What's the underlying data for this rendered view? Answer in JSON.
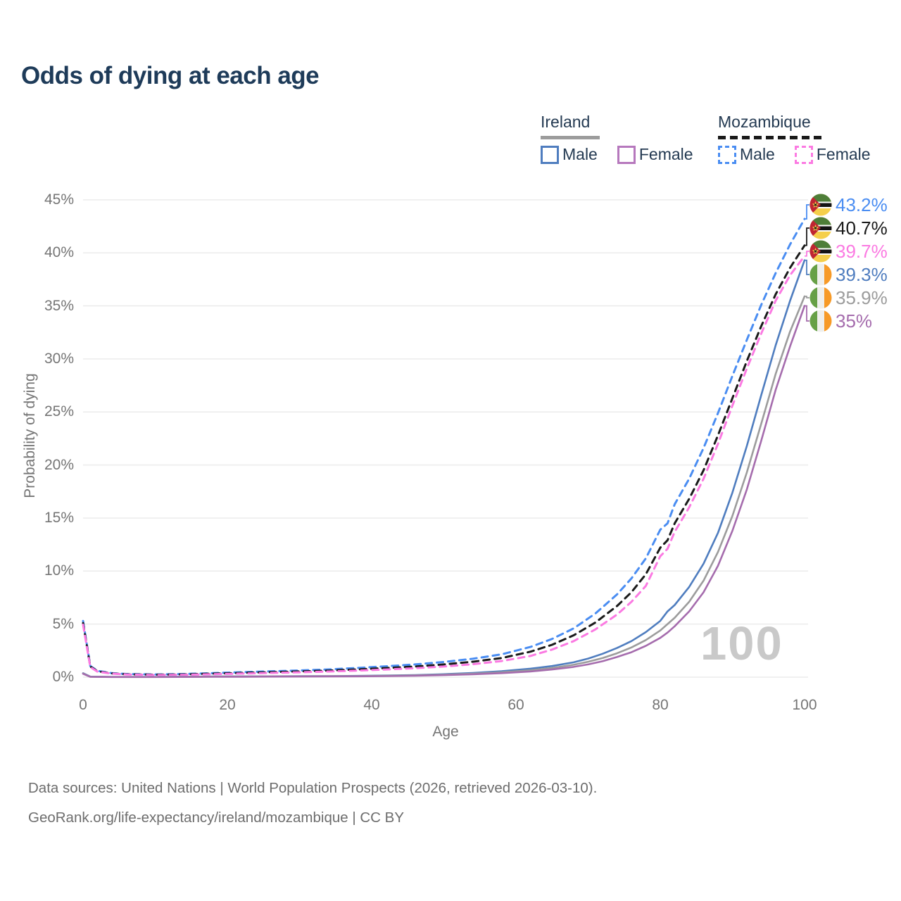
{
  "title": {
    "text": "Odds of dying at each age",
    "color": "#1e3b59"
  },
  "legend": {
    "groups": [
      {
        "name": "Ireland",
        "underline": {
          "style": "solid",
          "color": "#9c9c9c"
        },
        "items": [
          {
            "label": "Male",
            "color": "#4f7dbf",
            "dash": "solid"
          },
          {
            "label": "Female",
            "color": "#b678bd",
            "dash": "solid"
          }
        ]
      },
      {
        "name": "Mozambique",
        "underline": {
          "style": "dashed",
          "color": "#1a1a1a"
        },
        "items": [
          {
            "label": "Male",
            "color": "#4a8df2",
            "dash": "dashed"
          },
          {
            "label": "Female",
            "color": "#fb7ae2",
            "dash": "dashed"
          }
        ]
      }
    ]
  },
  "axes": {
    "x": {
      "label": "Age",
      "ticks": [
        0,
        20,
        40,
        60,
        80,
        100
      ],
      "color": "#757575"
    },
    "y": {
      "label": "Probability of dying",
      "ticks": [
        "0%",
        "5%",
        "10%",
        "15%",
        "20%",
        "25%",
        "30%",
        "35%",
        "40%",
        "45%"
      ],
      "color": "#757575"
    }
  },
  "watermark": {
    "text": "100",
    "color": "#c9c9c9"
  },
  "footer": {
    "line1": "Data sources: United Nations | World Population Prospects (2026, retrieved 2026-03-10).",
    "line2": "GeoRank.org/life-expectancy/ireland/mozambique | CC BY"
  },
  "chart_data": {
    "type": "line",
    "title": "Odds of dying at each age",
    "xlabel": "Age",
    "ylabel": "Probability of dying",
    "xlim": [
      0,
      100
    ],
    "ylim": [
      0,
      45
    ],
    "y_unit": "%",
    "grid": "horizontal, every 5%",
    "legend_position": "top-right",
    "series": [
      {
        "name": "Mozambique Male",
        "country": "Mozambique",
        "flag": "mozambique",
        "style": "dashed",
        "color": "#4a8df2",
        "end_label": "43.2%",
        "end_value": 43.2,
        "points": [
          [
            0,
            5.3
          ],
          [
            1,
            1.05
          ],
          [
            2,
            0.6
          ],
          [
            4,
            0.38
          ],
          [
            6,
            0.3
          ],
          [
            10,
            0.26
          ],
          [
            14,
            0.3
          ],
          [
            18,
            0.38
          ],
          [
            22,
            0.47
          ],
          [
            26,
            0.55
          ],
          [
            30,
            0.63
          ],
          [
            34,
            0.73
          ],
          [
            38,
            0.87
          ],
          [
            42,
            1.02
          ],
          [
            46,
            1.2
          ],
          [
            50,
            1.43
          ],
          [
            54,
            1.73
          ],
          [
            58,
            2.15
          ],
          [
            62,
            2.85
          ],
          [
            65,
            3.6
          ],
          [
            68,
            4.6
          ],
          [
            71,
            6.0
          ],
          [
            74,
            7.8
          ],
          [
            76,
            9.3
          ],
          [
            78,
            11.2
          ],
          [
            80,
            13.9
          ],
          [
            81,
            14.5
          ],
          [
            82,
            16.3
          ],
          [
            84,
            18.7
          ],
          [
            86,
            21.6
          ],
          [
            88,
            24.9
          ],
          [
            90,
            28.4
          ],
          [
            92,
            31.8
          ],
          [
            94,
            35.1
          ],
          [
            96,
            38.1
          ],
          [
            98,
            40.8
          ],
          [
            100,
            43.2
          ]
        ]
      },
      {
        "name": "Mozambique Both sexes",
        "country": "Mozambique",
        "flag": "mozambique",
        "style": "dashed",
        "color": "#1a1a1a",
        "end_label": "40.7%",
        "end_value": 40.7,
        "points": [
          [
            0,
            5.1
          ],
          [
            1,
            1.0
          ],
          [
            2,
            0.55
          ],
          [
            4,
            0.35
          ],
          [
            6,
            0.27
          ],
          [
            10,
            0.23
          ],
          [
            14,
            0.26
          ],
          [
            18,
            0.33
          ],
          [
            22,
            0.4
          ],
          [
            26,
            0.47
          ],
          [
            30,
            0.54
          ],
          [
            34,
            0.62
          ],
          [
            38,
            0.73
          ],
          [
            42,
            0.86
          ],
          [
            46,
            1.0
          ],
          [
            50,
            1.2
          ],
          [
            54,
            1.45
          ],
          [
            58,
            1.8
          ],
          [
            62,
            2.4
          ],
          [
            65,
            3.05
          ],
          [
            68,
            3.95
          ],
          [
            71,
            5.15
          ],
          [
            74,
            6.7
          ],
          [
            76,
            8.0
          ],
          [
            78,
            9.7
          ],
          [
            80,
            12.2
          ],
          [
            81,
            12.9
          ],
          [
            82,
            14.5
          ],
          [
            84,
            16.8
          ],
          [
            86,
            19.5
          ],
          [
            88,
            22.8
          ],
          [
            90,
            26.3
          ],
          [
            92,
            29.8
          ],
          [
            94,
            33.1
          ],
          [
            96,
            36.1
          ],
          [
            98,
            38.6
          ],
          [
            100,
            40.7
          ]
        ]
      },
      {
        "name": "Mozambique Female",
        "country": "Mozambique",
        "flag": "mozambique",
        "style": "dashed",
        "color": "#fb7ae2",
        "end_label": "39.7%",
        "end_value": 39.7,
        "points": [
          [
            0,
            4.95
          ],
          [
            1,
            0.95
          ],
          [
            2,
            0.52
          ],
          [
            4,
            0.33
          ],
          [
            6,
            0.25
          ],
          [
            10,
            0.2
          ],
          [
            14,
            0.22
          ],
          [
            18,
            0.28
          ],
          [
            22,
            0.34
          ],
          [
            26,
            0.4
          ],
          [
            30,
            0.46
          ],
          [
            34,
            0.53
          ],
          [
            38,
            0.62
          ],
          [
            42,
            0.72
          ],
          [
            46,
            0.84
          ],
          [
            50,
            1.0
          ],
          [
            54,
            1.22
          ],
          [
            58,
            1.52
          ],
          [
            62,
            2.0
          ],
          [
            65,
            2.6
          ],
          [
            68,
            3.4
          ],
          [
            71,
            4.5
          ],
          [
            74,
            5.9
          ],
          [
            76,
            7.1
          ],
          [
            78,
            8.6
          ],
          [
            80,
            11.4
          ],
          [
            81,
            12.1
          ],
          [
            82,
            13.7
          ],
          [
            84,
            16.0
          ],
          [
            86,
            18.7
          ],
          [
            88,
            22.0
          ],
          [
            90,
            25.6
          ],
          [
            92,
            29.1
          ],
          [
            94,
            32.4
          ],
          [
            96,
            35.5
          ],
          [
            98,
            37.9
          ],
          [
            100,
            39.7
          ]
        ]
      },
      {
        "name": "Ireland Male",
        "country": "Ireland",
        "flag": "ireland",
        "style": "solid",
        "color": "#4f7dbf",
        "end_label": "39.3%",
        "end_value": 39.3,
        "points": [
          [
            0,
            0.38
          ],
          [
            1,
            0.05
          ],
          [
            4,
            0.02
          ],
          [
            10,
            0.02
          ],
          [
            14,
            0.04
          ],
          [
            18,
            0.06
          ],
          [
            22,
            0.07
          ],
          [
            26,
            0.08
          ],
          [
            30,
            0.09
          ],
          [
            34,
            0.1
          ],
          [
            38,
            0.12
          ],
          [
            42,
            0.15
          ],
          [
            46,
            0.2
          ],
          [
            50,
            0.28
          ],
          [
            54,
            0.4
          ],
          [
            58,
            0.56
          ],
          [
            62,
            0.8
          ],
          [
            65,
            1.05
          ],
          [
            68,
            1.4
          ],
          [
            70,
            1.75
          ],
          [
            72,
            2.2
          ],
          [
            74,
            2.75
          ],
          [
            76,
            3.4
          ],
          [
            78,
            4.25
          ],
          [
            80,
            5.3
          ],
          [
            81,
            6.2
          ],
          [
            82,
            6.8
          ],
          [
            84,
            8.5
          ],
          [
            86,
            10.7
          ],
          [
            88,
            13.6
          ],
          [
            90,
            17.4
          ],
          [
            92,
            21.8
          ],
          [
            94,
            26.6
          ],
          [
            96,
            31.3
          ],
          [
            98,
            35.5
          ],
          [
            100,
            39.3
          ]
        ]
      },
      {
        "name": "Ireland Both sexes",
        "country": "Ireland",
        "flag": "ireland",
        "style": "solid",
        "color": "#9c9c9c",
        "end_label": "35.9%",
        "end_value": 35.9,
        "points": [
          [
            0,
            0.35
          ],
          [
            1,
            0.04
          ],
          [
            4,
            0.02
          ],
          [
            10,
            0.02
          ],
          [
            14,
            0.03
          ],
          [
            18,
            0.05
          ],
          [
            22,
            0.06
          ],
          [
            26,
            0.07
          ],
          [
            30,
            0.08
          ],
          [
            34,
            0.09
          ],
          [
            38,
            0.1
          ],
          [
            42,
            0.13
          ],
          [
            46,
            0.17
          ],
          [
            50,
            0.23
          ],
          [
            54,
            0.33
          ],
          [
            58,
            0.46
          ],
          [
            62,
            0.65
          ],
          [
            65,
            0.87
          ],
          [
            68,
            1.17
          ],
          [
            70,
            1.45
          ],
          [
            72,
            1.8
          ],
          [
            74,
            2.25
          ],
          [
            76,
            2.8
          ],
          [
            78,
            3.5
          ],
          [
            80,
            4.4
          ],
          [
            81,
            5.0
          ],
          [
            82,
            5.6
          ],
          [
            84,
            7.1
          ],
          [
            86,
            9.1
          ],
          [
            88,
            11.8
          ],
          [
            90,
            15.2
          ],
          [
            92,
            19.3
          ],
          [
            94,
            23.9
          ],
          [
            96,
            28.6
          ],
          [
            98,
            32.6
          ],
          [
            100,
            35.9
          ]
        ]
      },
      {
        "name": "Ireland Female",
        "country": "Ireland",
        "flag": "ireland",
        "style": "solid",
        "color": "#a56cad",
        "end_label": "35%",
        "end_value": 35.0,
        "points": [
          [
            0,
            0.32
          ],
          [
            1,
            0.03
          ],
          [
            4,
            0.01
          ],
          [
            10,
            0.01
          ],
          [
            14,
            0.02
          ],
          [
            18,
            0.03
          ],
          [
            22,
            0.04
          ],
          [
            26,
            0.05
          ],
          [
            30,
            0.06
          ],
          [
            34,
            0.07
          ],
          [
            38,
            0.08
          ],
          [
            42,
            0.1
          ],
          [
            46,
            0.14
          ],
          [
            50,
            0.19
          ],
          [
            54,
            0.27
          ],
          [
            58,
            0.38
          ],
          [
            62,
            0.53
          ],
          [
            65,
            0.72
          ],
          [
            68,
            0.97
          ],
          [
            70,
            1.2
          ],
          [
            72,
            1.5
          ],
          [
            74,
            1.9
          ],
          [
            76,
            2.35
          ],
          [
            78,
            2.95
          ],
          [
            80,
            3.7
          ],
          [
            81,
            4.2
          ],
          [
            82,
            4.8
          ],
          [
            84,
            6.2
          ],
          [
            86,
            8.0
          ],
          [
            88,
            10.5
          ],
          [
            90,
            13.8
          ],
          [
            92,
            17.7
          ],
          [
            94,
            22.3
          ],
          [
            96,
            27.1
          ],
          [
            98,
            31.2
          ],
          [
            100,
            35.0
          ]
        ]
      }
    ]
  }
}
